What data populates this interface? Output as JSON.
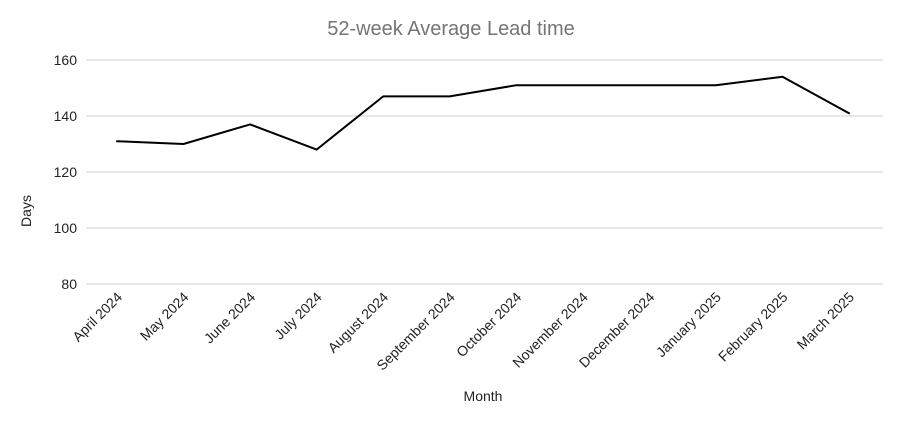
{
  "chart_data": {
    "type": "line",
    "title": "52-week Average Lead time",
    "xlabel": "Month",
    "ylabel": "Days",
    "ylim": [
      80,
      160
    ],
    "yticks": [
      80,
      100,
      120,
      140,
      160
    ],
    "grid": true,
    "categories": [
      "April 2024",
      "May 2024",
      "June 2024",
      "July 2024",
      "August 2024",
      "September 2024",
      "October 2024",
      "November 2024",
      "December 2024",
      "January 2025",
      "February 2025",
      "March 2025"
    ],
    "series": [
      {
        "values": [
          131,
          130,
          137,
          128,
          147,
          147,
          151,
          151,
          151,
          151,
          154,
          141
        ],
        "color": "#000000"
      }
    ]
  }
}
